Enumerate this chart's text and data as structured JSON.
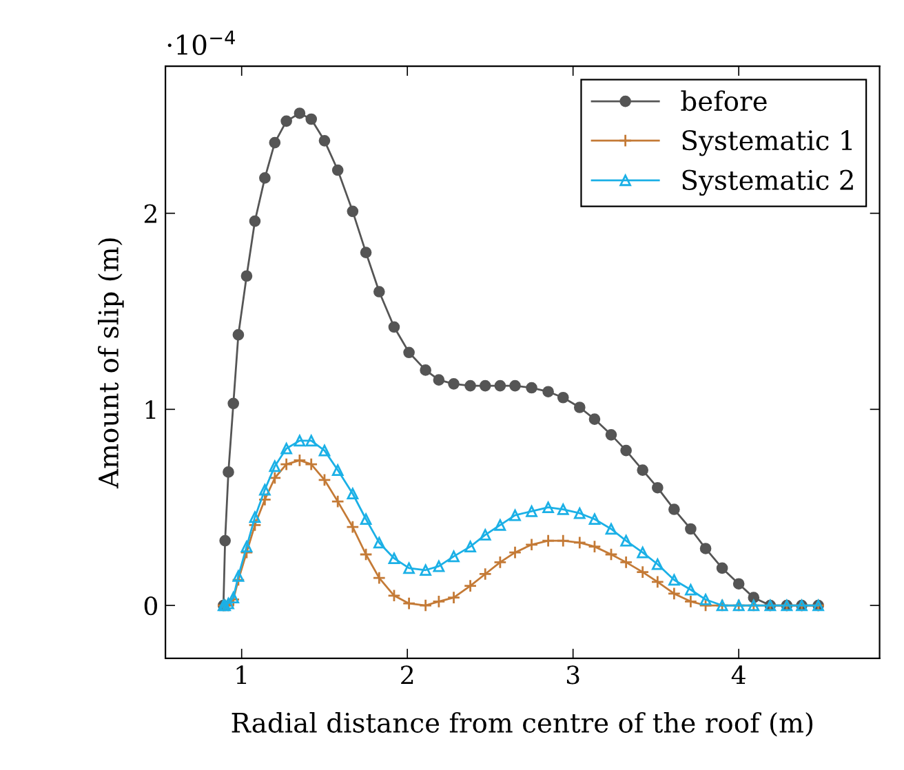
{
  "chart_data": {
    "type": "line",
    "xlabel": "Radial distance from centre of the roof (m)",
    "ylabel": "Amount of slip (m)",
    "annotations": [
      "·10$^{−4}$"
    ],
    "x": [
      0.89,
      0.9,
      0.92,
      0.95,
      0.98,
      1.03,
      1.08,
      1.14,
      1.2,
      1.27,
      1.35,
      1.42,
      1.5,
      1.58,
      1.67,
      1.75,
      1.83,
      1.92,
      2.01,
      2.11,
      2.19,
      2.28,
      2.38,
      2.47,
      2.56,
      2.65,
      2.75,
      2.85,
      2.94,
      3.04,
      3.13,
      3.23,
      3.32,
      3.42,
      3.51,
      3.61,
      3.71,
      3.8,
      3.9,
      4.0,
      4.09,
      4.19,
      4.29,
      4.38,
      4.48
    ],
    "series": [
      {
        "name": "before",
        "color": "#555555",
        "marker": "circle",
        "values": [
          0,
          0.33,
          0.68,
          1.03,
          1.38,
          1.68,
          1.96,
          2.18,
          2.36,
          2.47,
          2.51,
          2.48,
          2.37,
          2.22,
          2.01,
          1.8,
          1.6,
          1.42,
          1.29,
          1.2,
          1.15,
          1.13,
          1.12,
          1.12,
          1.12,
          1.12,
          1.11,
          1.09,
          1.06,
          1.01,
          0.95,
          0.87,
          0.79,
          0.69,
          0.6,
          0.49,
          0.39,
          0.29,
          0.19,
          0.11,
          0.04,
          0,
          0,
          0,
          0
        ]
      },
      {
        "name": "Systematic 1",
        "color": "#c47a36",
        "marker": "cross",
        "values": [
          0,
          0,
          0,
          0.03,
          0.13,
          0.27,
          0.41,
          0.54,
          0.65,
          0.72,
          0.74,
          0.72,
          0.64,
          0.53,
          0.4,
          0.26,
          0.14,
          0.05,
          0.01,
          0,
          0.02,
          0.04,
          0.1,
          0.16,
          0.22,
          0.27,
          0.31,
          0.33,
          0.33,
          0.32,
          0.3,
          0.26,
          0.22,
          0.17,
          0.12,
          0.06,
          0.02,
          0,
          0,
          0,
          0,
          0,
          0,
          0,
          0
        ]
      },
      {
        "name": "Systematic 2",
        "color": "#1bb0e6",
        "marker": "triangle",
        "values": [
          0,
          0,
          0.01,
          0.04,
          0.15,
          0.3,
          0.45,
          0.59,
          0.71,
          0.8,
          0.84,
          0.84,
          0.79,
          0.69,
          0.57,
          0.44,
          0.32,
          0.24,
          0.19,
          0.18,
          0.2,
          0.25,
          0.3,
          0.36,
          0.41,
          0.46,
          0.48,
          0.5,
          0.49,
          0.47,
          0.44,
          0.39,
          0.33,
          0.27,
          0.21,
          0.13,
          0.08,
          0.03,
          0,
          0,
          0,
          0,
          0,
          0,
          0
        ]
      }
    ],
    "xlim": [
      0.54,
      4.85
    ],
    "ylim": [
      -0.27,
      2.75
    ],
    "xticks": [
      1,
      2,
      3,
      4
    ],
    "yticks": [
      0,
      1,
      2
    ],
    "grid": false,
    "legend": "top right"
  }
}
